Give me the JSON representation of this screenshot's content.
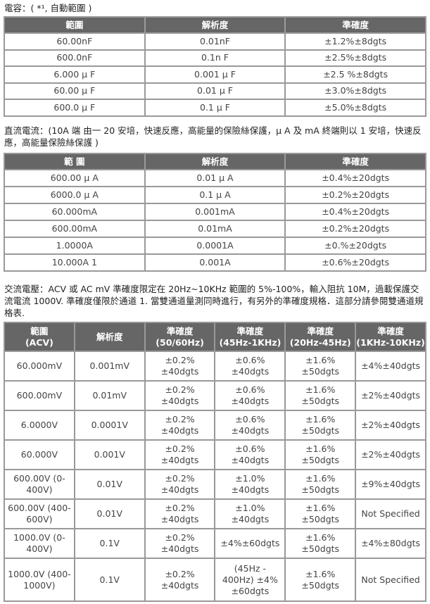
{
  "capacitance": {
    "caption": "電容：( *¹, 自動範圍 )",
    "headers": [
      "範圍",
      "解析度",
      "準確度"
    ],
    "rows": [
      [
        "60.00nF",
        "0.01nF",
        "±1.2%±8dgts"
      ],
      [
        "600.0nF",
        "0.1n F",
        "±2.5%±8dgts"
      ],
      [
        "6.000 µ F",
        "0.001 µ F",
        "±2.5 %±8dgts"
      ],
      [
        "60.00 µ F",
        "0.01 µ F",
        "±3.0%±8dgts"
      ],
      [
        "600.0 µ F",
        "0.1 µ F",
        "±5.0%±8dgts"
      ]
    ]
  },
  "dc_current": {
    "caption": "直流電流：(10A 端 由一 20 安培，快速反應，高能量的保險絲保護，µ A 及 mA 終端則以 1 安培，快速反應，高能量保險絲保護 )",
    "headers": [
      "範 圍",
      "解析度",
      "準確度"
    ],
    "rows": [
      [
        "600.00 µ A",
        "0.01 µ A",
        "±0.4%±20dgts"
      ],
      [
        "6000.0 µ A",
        "0.1 µ A",
        "±0.2%±20dgts"
      ],
      [
        "60.000mA",
        "0.001mA",
        "±0.4%±20dgts"
      ],
      [
        "600.00mA",
        "0.01mA",
        "±0.2%±20dgts"
      ],
      [
        "1.0000A",
        "0.0001A",
        "±0.%±20dgts"
      ],
      [
        "10.000A 1",
        "0.001A",
        "±0.6%±20dgts"
      ]
    ]
  },
  "ac_voltage": {
    "caption": "交流電壓：ACV 或 AC mV 準確度限定在 20Hz~10KHz 範圍的 5%-100%，輸入阻抗 10M，過載保護交流電流 1000V. 準確度僅限於通道 1. 當雙通道量測同時進行，有另外的準確度規格．這部分請參閱雙通道規格表.",
    "headers": [
      "範圍\n(ACV)",
      "解析度",
      "準確度\n(50/60Hz)",
      "準確度\n(45Hz-1KHz)",
      "準確度\n(20Hz-45Hz)",
      "準確度\n(1KHz-10KHz)"
    ],
    "rows": [
      [
        "60.000mV",
        "0.001mV",
        "±0.2%\n±40dgts",
        "±0.6%\n±40dgts",
        "±1.6%\n±50dgts",
        "±4%±40dgts"
      ],
      [
        "600.00mV",
        "0.01mV",
        "±0.2%\n±40dgts",
        "±0.6%\n±40dgts",
        "±1.6%\n±50dgts",
        "±2%±40dgts"
      ],
      [
        "6.0000V",
        "0.0001V",
        "±0.2%\n±40dgts",
        "±0.6%\n±40dgts",
        "±1.6%\n±50dgts",
        "±2%±40dgts"
      ],
      [
        "60.000V",
        "0.001V",
        "±0.2%\n±40dgts",
        "±0.6%\n±40dgts",
        "±1.6%\n±50dgts",
        "±2%±40dgts"
      ],
      [
        "600.00V (0-\n400V)",
        "0.01V",
        "±0.2%\n±40dgts",
        "±1.0%\n±40dgts",
        "±1.6%\n±50dgts",
        "±9%±40dgts"
      ],
      [
        "600.00V (400-\n600V)",
        "0.01V",
        "±0.2%\n±40dgts",
        "±1.0%\n±40dgts",
        "±1.6%\n±50dgts",
        "Not Specified"
      ],
      [
        "1000.0V (0-\n400V)",
        "0.1V",
        "±0.2%\n±40dgts",
        "±4%±60dgts",
        "±1.6%\n±50dgts",
        "±4%±80dgts"
      ],
      [
        "1000.0V (400-\n1000V)",
        "0.1V",
        "±0.2%\n±40dgts",
        "(45Hz -\n400Hz) ±4%\n±60dgts",
        "±1.6%\n±50dgts",
        "Not Specified"
      ]
    ]
  }
}
